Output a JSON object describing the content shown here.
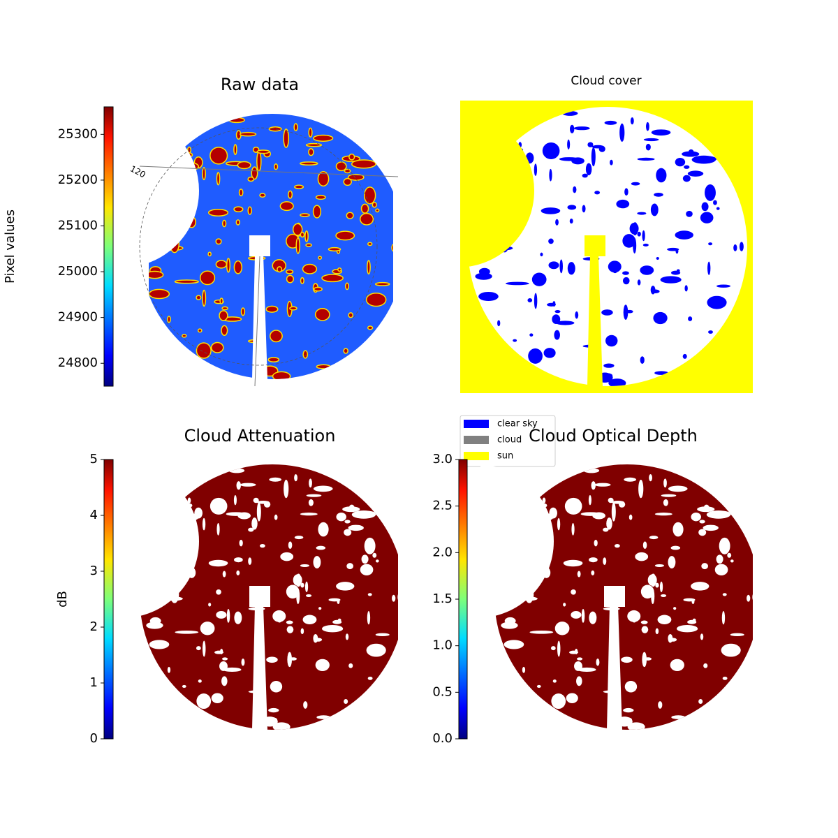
{
  "chart_data": [
    {
      "type": "image",
      "title": "Raw data",
      "colormap": "jet",
      "colorbar_label": "Pixel values",
      "ylim": [
        24750,
        25360
      ],
      "yticks": [
        24800,
        24900,
        25000,
        25100,
        25200,
        25300
      ],
      "annotations": [
        "120"
      ]
    },
    {
      "type": "mask",
      "title": "Cloud cover",
      "legend": [
        {
          "name": "clear sky",
          "color": "#0000ff"
        },
        {
          "name": "cloud",
          "color": "#808080"
        },
        {
          "name": "sun",
          "color": "#ffff00"
        }
      ]
    },
    {
      "type": "image",
      "title": "Cloud Attenuation",
      "colormap": "jet",
      "colorbar_label": "dB",
      "ylim": [
        0,
        5
      ],
      "yticks": [
        0,
        1,
        2,
        3,
        4,
        5
      ]
    },
    {
      "type": "image",
      "title": "Cloud Optical Depth",
      "colormap": "jet",
      "ylim": [
        0,
        3
      ],
      "yticks": [
        {
          "value": 0,
          "label": "0.0"
        },
        0.5,
        {
          "value": 1,
          "label": "1.0"
        },
        1.5,
        {
          "value": 2,
          "label": "2.0"
        },
        2.5,
        {
          "value": 3,
          "label": "3.0"
        }
      ]
    }
  ]
}
